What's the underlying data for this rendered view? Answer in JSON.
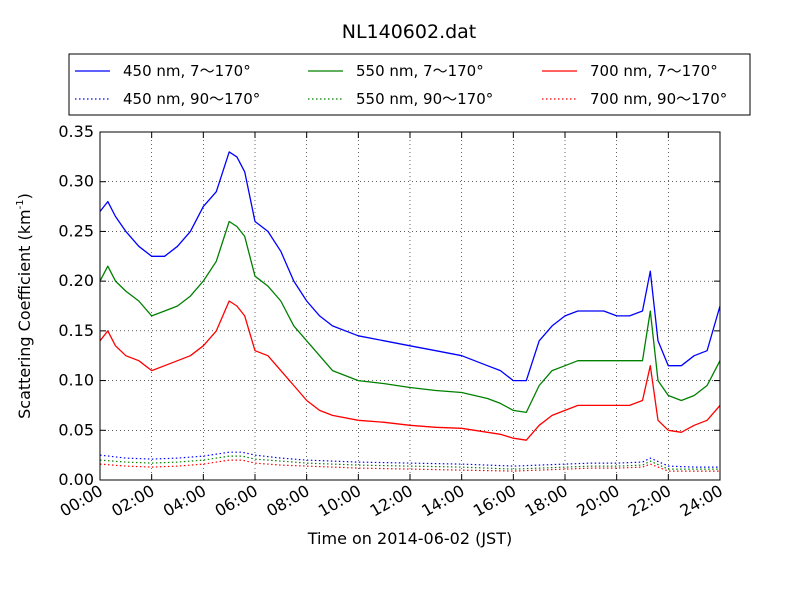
{
  "chart_data": {
    "type": "line",
    "title": "NL140602.dat",
    "xlabel": "Time on 2014-06-02 (JST)",
    "ylabel": "Scattering Coefficient (km",
    "ylabel_sup": "-1",
    "ylabel_close": ")",
    "xlim": [
      0,
      24
    ],
    "ylim": [
      0,
      0.35
    ],
    "x_unit": "hours",
    "xticks": [
      0,
      2,
      4,
      6,
      8,
      10,
      12,
      14,
      16,
      18,
      20,
      22,
      24
    ],
    "xtick_labels": [
      "00:00",
      "02:00",
      "04:00",
      "06:00",
      "08:00",
      "10:00",
      "12:00",
      "14:00",
      "16:00",
      "18:00",
      "20:00",
      "22:00",
      "24:00"
    ],
    "yticks": [
      0,
      0.05,
      0.1,
      0.15,
      0.2,
      0.25,
      0.3,
      0.35
    ],
    "ytick_labels": [
      "0.00",
      "0.05",
      "0.10",
      "0.15",
      "0.20",
      "0.25",
      "0.30",
      "0.35"
    ],
    "grid": true,
    "legend_position": "top, above plot",
    "series": [
      {
        "name": "450 nm, 7～170°",
        "color": "#0000ff",
        "style": "solid",
        "x": [
          0,
          0.3,
          0.6,
          1,
          1.5,
          2,
          2.5,
          3,
          3.5,
          4,
          4.5,
          5,
          5.3,
          5.6,
          6,
          6.5,
          7,
          7.5,
          8,
          8.5,
          9,
          10,
          11,
          12,
          13,
          14,
          15,
          15.5,
          16,
          16.5,
          17,
          17.5,
          18,
          18.5,
          19,
          19.5,
          20,
          20.5,
          21,
          21.3,
          21.6,
          22,
          22.5,
          23,
          23.5,
          24
        ],
        "y": [
          0.27,
          0.28,
          0.265,
          0.25,
          0.235,
          0.225,
          0.225,
          0.235,
          0.25,
          0.275,
          0.29,
          0.33,
          0.325,
          0.31,
          0.26,
          0.25,
          0.23,
          0.2,
          0.18,
          0.165,
          0.155,
          0.145,
          0.14,
          0.135,
          0.13,
          0.125,
          0.115,
          0.11,
          0.1,
          0.1,
          0.14,
          0.155,
          0.165,
          0.17,
          0.17,
          0.17,
          0.165,
          0.165,
          0.17,
          0.21,
          0.14,
          0.115,
          0.115,
          0.125,
          0.13,
          0.175
        ]
      },
      {
        "name": "550 nm, 7～170°",
        "color": "#008000",
        "style": "solid",
        "x": [
          0,
          0.3,
          0.6,
          1,
          1.5,
          2,
          2.5,
          3,
          3.5,
          4,
          4.5,
          5,
          5.3,
          5.6,
          6,
          6.5,
          7,
          7.5,
          8,
          8.5,
          9,
          10,
          11,
          12,
          13,
          14,
          15,
          15.5,
          16,
          16.5,
          17,
          17.5,
          18,
          18.5,
          19,
          19.5,
          20,
          20.5,
          21,
          21.3,
          21.6,
          22,
          22.5,
          23,
          23.5,
          24
        ],
        "y": [
          0.2,
          0.215,
          0.2,
          0.19,
          0.18,
          0.165,
          0.17,
          0.175,
          0.185,
          0.2,
          0.22,
          0.26,
          0.255,
          0.245,
          0.205,
          0.195,
          0.18,
          0.155,
          0.14,
          0.125,
          0.11,
          0.1,
          0.097,
          0.093,
          0.09,
          0.088,
          0.082,
          0.077,
          0.07,
          0.068,
          0.095,
          0.11,
          0.115,
          0.12,
          0.12,
          0.12,
          0.12,
          0.12,
          0.12,
          0.17,
          0.1,
          0.085,
          0.08,
          0.085,
          0.095,
          0.12
        ]
      },
      {
        "name": "700 nm, 7～170°",
        "color": "#ff0000",
        "style": "solid",
        "x": [
          0,
          0.3,
          0.6,
          1,
          1.5,
          2,
          2.5,
          3,
          3.5,
          4,
          4.5,
          5,
          5.3,
          5.6,
          6,
          6.5,
          7,
          7.5,
          8,
          8.5,
          9,
          10,
          11,
          12,
          13,
          14,
          15,
          15.5,
          16,
          16.5,
          17,
          17.5,
          18,
          18.5,
          19,
          19.5,
          20,
          20.5,
          21,
          21.3,
          21.6,
          22,
          22.5,
          23,
          23.5,
          24
        ],
        "y": [
          0.14,
          0.15,
          0.135,
          0.125,
          0.12,
          0.11,
          0.115,
          0.12,
          0.125,
          0.135,
          0.15,
          0.18,
          0.175,
          0.165,
          0.13,
          0.125,
          0.11,
          0.095,
          0.08,
          0.07,
          0.065,
          0.06,
          0.058,
          0.055,
          0.053,
          0.052,
          0.048,
          0.046,
          0.042,
          0.04,
          0.055,
          0.065,
          0.07,
          0.075,
          0.075,
          0.075,
          0.075,
          0.075,
          0.08,
          0.115,
          0.06,
          0.05,
          0.048,
          0.055,
          0.06,
          0.075
        ]
      },
      {
        "name": "450 nm, 90～170°",
        "color": "#0000ff",
        "style": "dotted",
        "x": [
          0,
          1,
          2,
          3,
          4,
          5,
          5.5,
          6,
          7,
          8,
          10,
          12,
          14,
          16,
          17,
          18,
          19,
          20,
          21,
          21.3,
          22,
          23,
          24
        ],
        "y": [
          0.025,
          0.022,
          0.021,
          0.022,
          0.024,
          0.028,
          0.028,
          0.025,
          0.022,
          0.02,
          0.018,
          0.017,
          0.016,
          0.014,
          0.015,
          0.016,
          0.017,
          0.017,
          0.018,
          0.022,
          0.014,
          0.013,
          0.013
        ]
      },
      {
        "name": "550 nm, 90～170°",
        "color": "#008000",
        "style": "dotted",
        "x": [
          0,
          1,
          2,
          3,
          4,
          5,
          5.5,
          6,
          7,
          8,
          10,
          12,
          14,
          16,
          17,
          18,
          19,
          20,
          21,
          21.3,
          22,
          23,
          24
        ],
        "y": [
          0.02,
          0.018,
          0.017,
          0.018,
          0.02,
          0.024,
          0.024,
          0.021,
          0.019,
          0.017,
          0.015,
          0.014,
          0.013,
          0.011,
          0.012,
          0.013,
          0.014,
          0.014,
          0.015,
          0.019,
          0.011,
          0.011,
          0.011
        ]
      },
      {
        "name": "700 nm, 90～170°",
        "color": "#ff0000",
        "style": "dotted",
        "x": [
          0,
          1,
          2,
          3,
          4,
          5,
          5.5,
          6,
          7,
          8,
          10,
          12,
          14,
          16,
          17,
          18,
          19,
          20,
          21,
          21.3,
          22,
          23,
          24
        ],
        "y": [
          0.016,
          0.014,
          0.013,
          0.014,
          0.016,
          0.02,
          0.02,
          0.017,
          0.015,
          0.014,
          0.012,
          0.011,
          0.01,
          0.009,
          0.01,
          0.011,
          0.012,
          0.012,
          0.013,
          0.016,
          0.009,
          0.009,
          0.009
        ]
      }
    ],
    "legend": {
      "entries": [
        {
          "series": 0,
          "label": "450 nm, 7～170°"
        },
        {
          "series": 1,
          "label": "550 nm, 7～170°"
        },
        {
          "series": 2,
          "label": "700 nm, 7～170°"
        },
        {
          "series": 3,
          "label": "450 nm, 90～170°"
        },
        {
          "series": 4,
          "label": "550 nm, 90～170°"
        },
        {
          "series": 5,
          "label": "700 nm, 90～170°"
        }
      ]
    }
  }
}
